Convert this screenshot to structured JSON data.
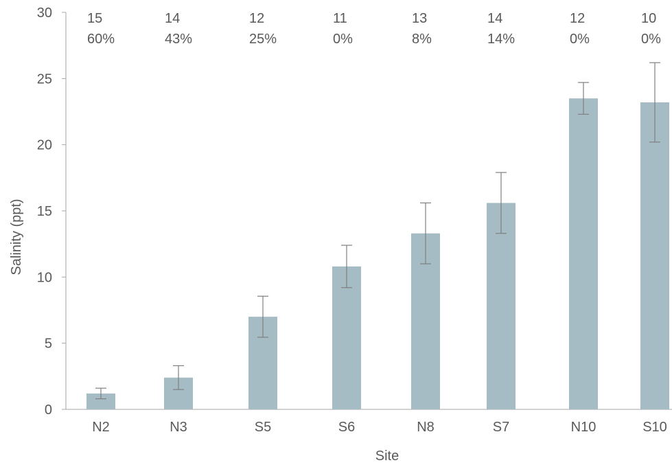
{
  "chart_data": {
    "type": "bar",
    "categories": [
      "N2",
      "N3",
      "S5",
      "S6",
      "N8",
      "S7",
      "N10",
      "S10"
    ],
    "values": [
      1.2,
      2.4,
      7.0,
      10.8,
      13.3,
      15.6,
      23.5,
      23.2
    ],
    "error": [
      0.4,
      0.9,
      1.55,
      1.6,
      2.3,
      2.3,
      1.2,
      3.0
    ],
    "counts": [
      "15",
      "14",
      "12",
      "11",
      "13",
      "14",
      "12",
      "10"
    ],
    "percents": [
      "60%",
      "43%",
      "25%",
      "0%",
      "8%",
      "14%",
      "0%",
      "0%"
    ],
    "xlabel": "Site",
    "ylabel": "Salinity (ppt)",
    "ylim": [
      0,
      30
    ],
    "yticks": [
      "0",
      "5",
      "10",
      "15",
      "20",
      "25",
      "30"
    ],
    "grid": false,
    "colors": {
      "bar": "#a6bcc4",
      "error": "#7f7f7f",
      "axis": "#a6a6a6",
      "text": "#595959"
    }
  }
}
